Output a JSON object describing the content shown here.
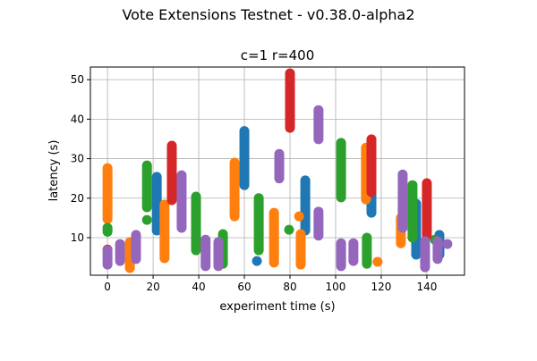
{
  "chart_data": {
    "type": "scatter",
    "suptitle": "Vote Extensions Testnet - v0.38.0-alpha2",
    "title": "c=1 r=400",
    "xlabel": "experiment time (s)",
    "ylabel": "latency (s)",
    "xlim": [
      -7.5,
      156.5
    ],
    "ylim": [
      0.5,
      53.2
    ],
    "xticks": [
      0,
      20,
      40,
      60,
      80,
      100,
      120,
      140
    ],
    "yticks": [
      10,
      20,
      30,
      40,
      50
    ],
    "grid": true,
    "legend": "none",
    "series": [
      {
        "color": "#1f77b4",
        "segments": [
          [
            21.6,
            11.8,
            25.4
          ],
          [
            60,
            23.3,
            37
          ],
          [
            65.5,
            4.1,
            4.1
          ],
          [
            86.7,
            11.8,
            24.5
          ],
          [
            115.7,
            16.3,
            21.3
          ],
          [
            135.3,
            5.7,
            18.6
          ],
          [
            145.5,
            5.7,
            10.7
          ]
        ]
      },
      {
        "color": "#ff7f0e",
        "segments": [
          [
            0,
            14.7,
            27.6
          ],
          [
            9.8,
            2.3,
            8.9
          ],
          [
            25,
            4.8,
            18.4
          ],
          [
            55.7,
            15.4,
            29
          ],
          [
            73,
            3.7,
            16.3
          ],
          [
            84,
            15.4,
            15.4
          ],
          [
            84.7,
            3.2,
            10.9
          ],
          [
            113.3,
            19.7,
            32.8
          ],
          [
            118.4,
            3.9,
            3.9
          ],
          [
            128.6,
            8.6,
            15
          ]
        ]
      },
      {
        "color": "#2ca02c",
        "segments": [
          [
            0,
            11.5,
            12.5
          ],
          [
            17.3,
            17.7,
            28.3
          ],
          [
            17.3,
            14.5,
            14.5
          ],
          [
            38.8,
            6.8,
            20.4
          ],
          [
            50.6,
            3.4,
            10.9
          ],
          [
            66.3,
            6.8,
            20
          ],
          [
            79.6,
            12,
            12
          ],
          [
            102.4,
            20.8,
            34
          ],
          [
            102.4,
            20.2,
            20.2
          ],
          [
            113.7,
            3.4,
            10
          ],
          [
            133.7,
            10,
            23.3
          ],
          [
            143.5,
            9.5,
            9.5
          ]
        ]
      },
      {
        "color": "#d62728",
        "segments": [
          [
            0,
            7,
            7
          ],
          [
            28.2,
            19.5,
            33.3
          ],
          [
            80,
            37.8,
            51.6
          ],
          [
            115.7,
            21.5,
            34.9
          ],
          [
            140,
            10.5,
            23.8
          ]
        ]
      },
      {
        "color": "#9467bd",
        "segments": [
          [
            0,
            3.2,
            6.8
          ],
          [
            5.5,
            4.1,
            8.4
          ],
          [
            12.5,
            4.6,
            10.7
          ],
          [
            32.5,
            12.5,
            25.8
          ],
          [
            43,
            2.8,
            9.5
          ],
          [
            48.6,
            2.8,
            8.9
          ],
          [
            75.3,
            25,
            31.2
          ],
          [
            92.5,
            34.9,
            42.3
          ],
          [
            92.5,
            10.5,
            16.6
          ],
          [
            102.4,
            2.8,
            8.6
          ],
          [
            107.8,
            4.1,
            8.6
          ],
          [
            129.4,
            12.5,
            26
          ],
          [
            139.2,
            2.5,
            9.1
          ],
          [
            144.7,
            4.6,
            9.1
          ],
          [
            149,
            8.4,
            8.4
          ]
        ]
      }
    ]
  }
}
